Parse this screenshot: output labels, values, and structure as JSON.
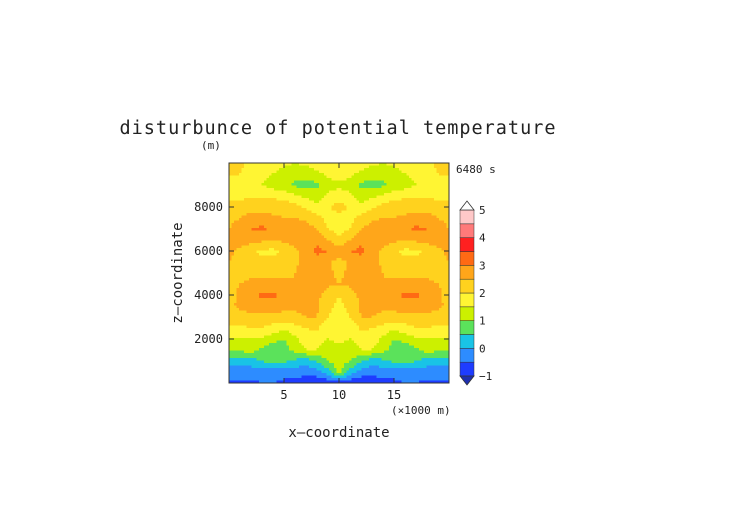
{
  "chart_data": {
    "type": "heatmap",
    "title": "disturbunce of potential temperature",
    "time_label": "6480 s",
    "xlabel": "x—coordinate",
    "ylabel": "z—coordinate",
    "x_unit": "(×1000 m)",
    "y_unit": "(m)",
    "xlim": [
      0,
      20
    ],
    "ylim": [
      0,
      10000
    ],
    "x_ticks": [
      5,
      10,
      15
    ],
    "x_tick_labels": [
      "5",
      "10",
      "15"
    ],
    "y_ticks": [
      2000,
      4000,
      6000,
      8000
    ],
    "y_tick_labels": [
      "2000",
      "4000",
      "6000",
      "8000"
    ],
    "colorbar": {
      "levels": [
        -1,
        -0.5,
        0,
        0.5,
        1,
        1.5,
        2,
        2.5,
        3,
        3.5,
        4,
        4.5,
        5
      ],
      "colors": [
        "#1e3cff",
        "#2d8cff",
        "#19c3e6",
        "#5be25b",
        "#ccf000",
        "#fff533",
        "#ffd21e",
        "#ffa61a",
        "#ff6a14",
        "#ff2020",
        "#ff7a7a",
        "#ffc8c8"
      ],
      "tick_labels": [
        "5",
        "4",
        "3",
        "2",
        "1",
        "0",
        "−1"
      ]
    },
    "z_grid_description": {
      "x_range_km": [
        0,
        20
      ],
      "z_range_m": [
        0,
        10000
      ],
      "rows": [
        {
          "z": 0,
          "values": [
            -0.6,
            -0.6,
            -0.6,
            -0.5,
            -0.5,
            -0.6,
            -0.7,
            -0.8,
            -0.9,
            -0.9,
            -0.9,
            -0.9,
            -0.9,
            -0.8,
            -0.7,
            -0.6,
            -0.5,
            -0.5,
            -0.6,
            -0.6,
            -0.6
          ]
        },
        {
          "z": 500,
          "values": [
            -0.3,
            -0.3,
            -0.3,
            -0.3,
            -0.3,
            -0.3,
            -0.3,
            -0.3,
            -0.2,
            0.3,
            1.2,
            0.3,
            -0.2,
            -0.3,
            -0.3,
            -0.3,
            -0.3,
            -0.3,
            -0.3,
            -0.3,
            -0.3
          ]
        },
        {
          "z": 1000,
          "values": [
            0.2,
            0.2,
            0.3,
            0.5,
            0.7,
            0.6,
            0.4,
            0.2,
            0.6,
            1.0,
            1.3,
            1.0,
            0.6,
            0.2,
            0.4,
            0.6,
            0.7,
            0.5,
            0.3,
            0.2,
            0.2
          ]
        },
        {
          "z": 1500,
          "values": [
            1.1,
            1.1,
            1.2,
            0.9,
            0.6,
            0.7,
            1.2,
            1.5,
            1.5,
            1.2,
            1.4,
            1.2,
            1.5,
            1.5,
            1.2,
            0.7,
            0.6,
            0.9,
            1.2,
            1.1,
            1.1
          ]
        },
        {
          "z": 2000,
          "values": [
            1.4,
            1.4,
            1.5,
            1.4,
            1.2,
            1.0,
            1.4,
            1.8,
            1.7,
            1.5,
            1.6,
            1.5,
            1.7,
            1.8,
            1.4,
            1.0,
            1.2,
            1.4,
            1.5,
            1.4,
            1.4
          ]
        },
        {
          "z": 2500,
          "values": [
            1.9,
            1.9,
            2.0,
            2.0,
            1.8,
            1.6,
            1.8,
            2.0,
            2.1,
            1.6,
            1.5,
            1.6,
            2.1,
            2.0,
            1.8,
            1.6,
            1.8,
            2.0,
            2.0,
            1.9,
            1.9
          ]
        },
        {
          "z": 3000,
          "values": [
            2.2,
            2.3,
            2.4,
            2.4,
            2.3,
            2.3,
            2.4,
            2.5,
            2.5,
            2.0,
            1.7,
            2.0,
            2.5,
            2.5,
            2.4,
            2.3,
            2.3,
            2.4,
            2.4,
            2.3,
            2.2
          ]
        },
        {
          "z": 3500,
          "values": [
            2.4,
            2.6,
            2.7,
            2.8,
            2.8,
            2.7,
            2.6,
            2.6,
            2.6,
            2.2,
            1.8,
            2.2,
            2.6,
            2.6,
            2.6,
            2.7,
            2.8,
            2.8,
            2.7,
            2.6,
            2.4
          ]
        },
        {
          "z": 4000,
          "values": [
            2.3,
            2.6,
            2.9,
            3.1,
            3.1,
            2.9,
            2.6,
            2.5,
            2.6,
            2.3,
            2.0,
            2.3,
            2.6,
            2.5,
            2.6,
            2.9,
            3.1,
            3.1,
            2.9,
            2.6,
            2.3
          ]
        },
        {
          "z": 4500,
          "values": [
            2.4,
            2.5,
            2.6,
            2.7,
            2.7,
            2.6,
            2.5,
            2.6,
            2.7,
            2.6,
            2.5,
            2.6,
            2.7,
            2.6,
            2.5,
            2.6,
            2.7,
            2.7,
            2.6,
            2.5,
            2.4
          ]
        },
        {
          "z": 5000,
          "values": [
            2.4,
            2.4,
            2.4,
            2.3,
            2.3,
            2.4,
            2.5,
            2.7,
            2.8,
            2.6,
            2.4,
            2.6,
            2.8,
            2.7,
            2.5,
            2.4,
            2.3,
            2.3,
            2.4,
            2.4,
            2.4
          ]
        },
        {
          "z": 5500,
          "values": [
            2.5,
            2.4,
            2.2,
            2.1,
            2.1,
            2.2,
            2.4,
            2.7,
            2.9,
            2.6,
            2.3,
            2.6,
            2.9,
            2.7,
            2.4,
            2.2,
            2.1,
            2.1,
            2.2,
            2.4,
            2.5
          ]
        },
        {
          "z": 6000,
          "values": [
            2.6,
            2.4,
            2.1,
            1.9,
            1.9,
            2.1,
            2.4,
            2.8,
            3.1,
            3.0,
            2.8,
            3.0,
            3.1,
            2.8,
            2.4,
            2.1,
            1.9,
            1.9,
            2.1,
            2.4,
            2.6
          ]
        },
        {
          "z": 6500,
          "values": [
            2.6,
            2.7,
            2.7,
            2.6,
            2.5,
            2.6,
            2.7,
            2.8,
            2.9,
            2.5,
            2.1,
            2.5,
            2.9,
            2.8,
            2.7,
            2.6,
            2.5,
            2.6,
            2.7,
            2.7,
            2.6
          ]
        },
        {
          "z": 7000,
          "values": [
            2.5,
            2.8,
            3.0,
            3.1,
            2.9,
            2.7,
            2.7,
            2.7,
            2.5,
            2.0,
            1.8,
            2.0,
            2.5,
            2.7,
            2.7,
            2.7,
            2.9,
            3.1,
            3.0,
            2.8,
            2.5
          ]
        },
        {
          "z": 7500,
          "values": [
            2.3,
            2.5,
            2.7,
            2.7,
            2.6,
            2.5,
            2.5,
            2.4,
            2.2,
            1.8,
            1.7,
            1.8,
            2.2,
            2.4,
            2.5,
            2.5,
            2.6,
            2.7,
            2.7,
            2.5,
            2.3
          ]
        },
        {
          "z": 8000,
          "values": [
            2.1,
            2.2,
            2.3,
            2.3,
            2.3,
            2.3,
            2.2,
            1.9,
            1.6,
            1.9,
            2.3,
            1.9,
            1.6,
            1.9,
            2.2,
            2.3,
            2.3,
            2.3,
            2.3,
            2.2,
            2.1
          ]
        },
        {
          "z": 8500,
          "values": [
            1.9,
            1.9,
            1.9,
            1.9,
            1.9,
            1.8,
            1.6,
            1.4,
            1.3,
            1.6,
            1.7,
            1.6,
            1.3,
            1.4,
            1.6,
            1.8,
            1.9,
            1.9,
            1.9,
            1.9,
            1.9
          ]
        },
        {
          "z": 9000,
          "values": [
            1.7,
            1.8,
            1.7,
            1.5,
            1.3,
            1.1,
            0.9,
            0.8,
            0.9,
            1.3,
            1.4,
            1.3,
            0.9,
            0.8,
            0.9,
            1.1,
            1.3,
            1.5,
            1.7,
            1.8,
            1.7
          ]
        },
        {
          "z": 9500,
          "values": [
            2.1,
            2.0,
            1.8,
            1.6,
            1.5,
            1.3,
            1.1,
            1.2,
            1.4,
            1.6,
            1.7,
            1.6,
            1.4,
            1.2,
            1.1,
            1.3,
            1.5,
            1.6,
            1.8,
            2.0,
            2.1
          ]
        },
        {
          "z": 10000,
          "values": [
            2.2,
            2.1,
            1.9,
            1.8,
            1.7,
            1.6,
            1.5,
            1.6,
            1.8,
            1.9,
            1.9,
            1.9,
            1.8,
            1.6,
            1.5,
            1.6,
            1.7,
            1.8,
            1.9,
            2.1,
            2.2
          ]
        }
      ]
    }
  }
}
